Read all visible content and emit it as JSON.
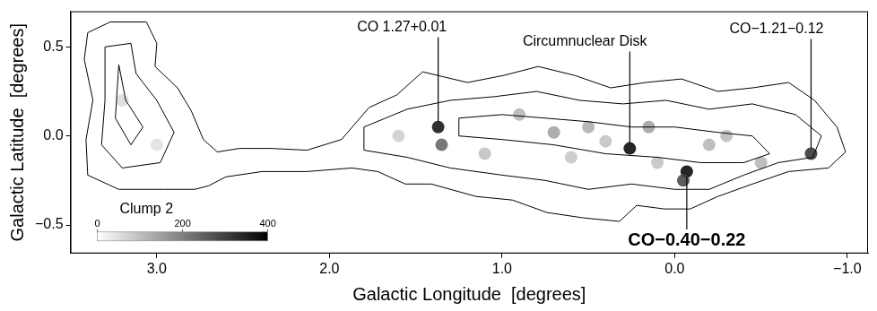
{
  "chart_data": {
    "type": "contour",
    "x_label": "Galactic Longitude  [degrees]",
    "y_label": "Galactic Latitude  [degrees]",
    "xlim": [
      3.5,
      -1.12
    ],
    "ylim": [
      -0.66,
      0.7
    ],
    "xticks": [
      {
        "value": 3,
        "label": "3.0"
      },
      {
        "value": 2,
        "label": "2.0"
      },
      {
        "value": 1,
        "label": "1.0"
      },
      {
        "value": 0,
        "label": "0.0"
      },
      {
        "value": -1,
        "label": "−1.0"
      }
    ],
    "yticks": [
      {
        "value": 0.5,
        "label": "0.5"
      },
      {
        "value": 0,
        "label": "0.0"
      },
      {
        "value": -0.5,
        "label": "−0.5"
      }
    ],
    "grid": false,
    "color": "#000000",
    "colorbar": {
      "range": [
        0,
        400
      ],
      "ticks": [
        0,
        200,
        400
      ]
    },
    "contours": [
      [
        [
          3.4,
          0.58
        ],
        [
          3.27,
          0.64
        ],
        [
          3.06,
          0.64
        ],
        [
          3.0,
          0.52
        ],
        [
          3.01,
          0.39
        ],
        [
          2.88,
          0.27
        ],
        [
          2.8,
          0.14
        ],
        [
          2.73,
          -0.02
        ],
        [
          2.65,
          -0.09
        ],
        [
          2.52,
          -0.07
        ],
        [
          2.34,
          -0.07
        ],
        [
          2.13,
          -0.08
        ],
        [
          1.93,
          -0.02
        ],
        [
          1.77,
          0.16
        ],
        [
          1.61,
          0.23
        ],
        [
          1.46,
          0.36
        ],
        [
          1.2,
          0.3
        ],
        [
          0.99,
          0.34
        ],
        [
          0.79,
          0.39
        ],
        [
          0.58,
          0.34
        ],
        [
          0.37,
          0.27
        ],
        [
          0.17,
          0.3
        ],
        [
          -0.04,
          0.32
        ],
        [
          -0.25,
          0.25
        ],
        [
          -0.45,
          0.27
        ],
        [
          -0.66,
          0.3
        ],
        [
          -0.81,
          0.2
        ],
        [
          -0.94,
          0.05
        ],
        [
          -0.99,
          -0.09
        ],
        [
          -0.89,
          -0.18
        ],
        [
          -0.66,
          -0.2
        ],
        [
          -0.45,
          -0.27
        ],
        [
          -0.25,
          -0.34
        ],
        [
          -0.09,
          -0.41
        ],
        [
          0.06,
          -0.41
        ],
        [
          0.22,
          -0.39
        ],
        [
          0.32,
          -0.48
        ],
        [
          0.53,
          -0.46
        ],
        [
          0.74,
          -0.43
        ],
        [
          0.94,
          -0.36
        ],
        [
          1.15,
          -0.34
        ],
        [
          1.41,
          -0.27
        ],
        [
          1.56,
          -0.27
        ],
        [
          1.72,
          -0.2
        ],
        [
          1.87,
          -0.18
        ],
        [
          2.13,
          -0.2
        ],
        [
          2.39,
          -0.2
        ],
        [
          2.6,
          -0.23
        ],
        [
          2.7,
          -0.28
        ],
        [
          2.78,
          -0.3
        ],
        [
          2.96,
          -0.3
        ],
        [
          3.22,
          -0.3
        ],
        [
          3.4,
          -0.22
        ],
        [
          3.41,
          -0.02
        ],
        [
          3.37,
          0.2
        ],
        [
          3.42,
          0.43
        ],
        [
          3.4,
          0.58
        ]
      ],
      [
        [
          1.8,
          0.05
        ],
        [
          1.55,
          0.15
        ],
        [
          1.3,
          0.2
        ],
        [
          1.05,
          0.22
        ],
        [
          0.8,
          0.25
        ],
        [
          0.55,
          0.2
        ],
        [
          0.3,
          0.18
        ],
        [
          0.05,
          0.2
        ],
        [
          -0.2,
          0.15
        ],
        [
          -0.45,
          0.18
        ],
        [
          -0.7,
          0.12
        ],
        [
          -0.85,
          0.0
        ],
        [
          -0.8,
          -0.12
        ],
        [
          -0.6,
          -0.15
        ],
        [
          -0.4,
          -0.22
        ],
        [
          -0.2,
          -0.3
        ],
        [
          0.0,
          -0.3
        ],
        [
          0.25,
          -0.27
        ],
        [
          0.5,
          -0.3
        ],
        [
          0.75,
          -0.25
        ],
        [
          1.0,
          -0.22
        ],
        [
          1.3,
          -0.18
        ],
        [
          1.55,
          -0.12
        ],
        [
          1.8,
          -0.08
        ],
        [
          1.8,
          0.05
        ]
      ],
      [
        [
          3.3,
          0.5
        ],
        [
          3.15,
          0.52
        ],
        [
          3.12,
          0.35
        ],
        [
          3.0,
          0.2
        ],
        [
          2.9,
          0.02
        ],
        [
          2.98,
          -0.15
        ],
        [
          3.2,
          -0.18
        ],
        [
          3.32,
          -0.05
        ],
        [
          3.3,
          0.2
        ],
        [
          3.3,
          0.5
        ]
      ],
      [
        [
          1.25,
          0.1
        ],
        [
          1.0,
          0.12
        ],
        [
          0.75,
          0.1
        ],
        [
          0.5,
          0.08
        ],
        [
          0.25,
          0.05
        ],
        [
          0.0,
          0.05
        ],
        [
          -0.25,
          0.02
        ],
        [
          -0.45,
          0.0
        ],
        [
          -0.55,
          -0.1
        ],
        [
          -0.4,
          -0.15
        ],
        [
          -0.15,
          -0.15
        ],
        [
          0.1,
          -0.12
        ],
        [
          0.4,
          -0.1
        ],
        [
          0.7,
          -0.05
        ],
        [
          1.0,
          -0.02
        ],
        [
          1.25,
          0.0
        ],
        [
          1.25,
          0.1
        ]
      ],
      [
        [
          3.22,
          0.4
        ],
        [
          3.18,
          0.2
        ],
        [
          3.08,
          0.05
        ],
        [
          3.15,
          -0.05
        ],
        [
          3.24,
          0.1
        ],
        [
          3.22,
          0.4
        ]
      ]
    ],
    "sources": [
      {
        "x": 1.37,
        "y": 0.05,
        "intensity": 380
      },
      {
        "x": 1.35,
        "y": -0.05,
        "intensity": 250
      },
      {
        "x": 0.26,
        "y": -0.07,
        "intensity": 400
      },
      {
        "x": -0.07,
        "y": -0.2,
        "intensity": 400
      },
      {
        "x": -0.05,
        "y": -0.25,
        "intensity": 300
      },
      {
        "x": -0.79,
        "y": -0.1,
        "intensity": 330
      },
      {
        "x": 0.9,
        "y": 0.12,
        "intensity": 120
      },
      {
        "x": 0.7,
        "y": 0.02,
        "intensity": 150
      },
      {
        "x": 0.5,
        "y": 0.05,
        "intensity": 130
      },
      {
        "x": 0.4,
        "y": -0.03,
        "intensity": 100
      },
      {
        "x": 0.15,
        "y": 0.05,
        "intensity": 150
      },
      {
        "x": -0.2,
        "y": -0.05,
        "intensity": 120
      },
      {
        "x": -0.3,
        "y": 0.0,
        "intensity": 110
      },
      {
        "x": 1.1,
        "y": -0.1,
        "intensity": 100
      },
      {
        "x": 1.6,
        "y": 0.0,
        "intensity": 80
      },
      {
        "x": 0.6,
        "y": -0.12,
        "intensity": 90
      },
      {
        "x": -0.5,
        "y": -0.15,
        "intensity": 120
      },
      {
        "x": 0.1,
        "y": -0.15,
        "intensity": 100
      },
      {
        "x": 3.2,
        "y": 0.2,
        "intensity": 60
      },
      {
        "x": 3.0,
        "y": -0.05,
        "intensity": 50
      }
    ],
    "annotations": [
      {
        "text": "CO 1.27+0.01",
        "x": 1.37,
        "y": 0.05,
        "text_x": 1.58,
        "text_y": 0.61
      },
      {
        "text": "Circumnuclear Disk",
        "x": 0.26,
        "y": -0.07,
        "text_x": 0.52,
        "text_y": 0.53
      },
      {
        "text": "CO−1.21−0.12",
        "x": -0.79,
        "y": -0.1,
        "text_x": -0.59,
        "text_y": 0.6
      },
      {
        "text": "CO−0.40−0.22",
        "x": -0.07,
        "y": -0.2,
        "text_x": -0.07,
        "text_y": -0.59
      },
      {
        "text": "Clump 2",
        "text_x": 3.06,
        "text_y": -0.41
      }
    ]
  }
}
